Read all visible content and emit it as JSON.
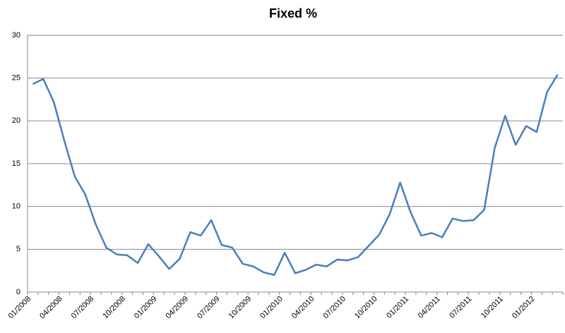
{
  "chart_data": {
    "type": "line",
    "title": "Fixed %",
    "categories": [
      "01/2008",
      null,
      null,
      "04/2008",
      null,
      null,
      "07/2008",
      null,
      null,
      "10/2008",
      null,
      null,
      "01/2009",
      null,
      null,
      "04/2009",
      null,
      null,
      "07/2009",
      null,
      null,
      "10/2009",
      null,
      null,
      "01/2010",
      null,
      null,
      "04/2010",
      null,
      null,
      "07/2010",
      null,
      null,
      "10/2010",
      null,
      null,
      "01/2011",
      null,
      null,
      "04/2011",
      null,
      null,
      "07/2011",
      null,
      null,
      "10/2011",
      null,
      null,
      "01/2012",
      null,
      null
    ],
    "values": [
      24.3,
      24.9,
      22.2,
      17.7,
      13.5,
      11.4,
      7.9,
      5.2,
      4.4,
      4.3,
      3.4,
      5.6,
      4.2,
      2.7,
      3.9,
      7.0,
      6.6,
      8.4,
      5.5,
      5.2,
      3.3,
      3.0,
      2.3,
      2.0,
      4.6,
      2.2,
      2.6,
      3.2,
      3.0,
      3.8,
      3.7,
      4.1,
      5.4,
      6.7,
      9.1,
      12.8,
      9.3,
      6.6,
      6.9,
      6.4,
      8.6,
      8.3,
      8.4,
      9.6,
      16.8,
      20.6,
      17.2,
      19.4,
      18.7,
      23.4,
      25.4
    ],
    "color": "#4a7ebb",
    "ylim": [
      0,
      30
    ],
    "yticks": [
      0,
      5,
      10,
      15,
      20,
      25,
      30
    ],
    "grid": true
  }
}
